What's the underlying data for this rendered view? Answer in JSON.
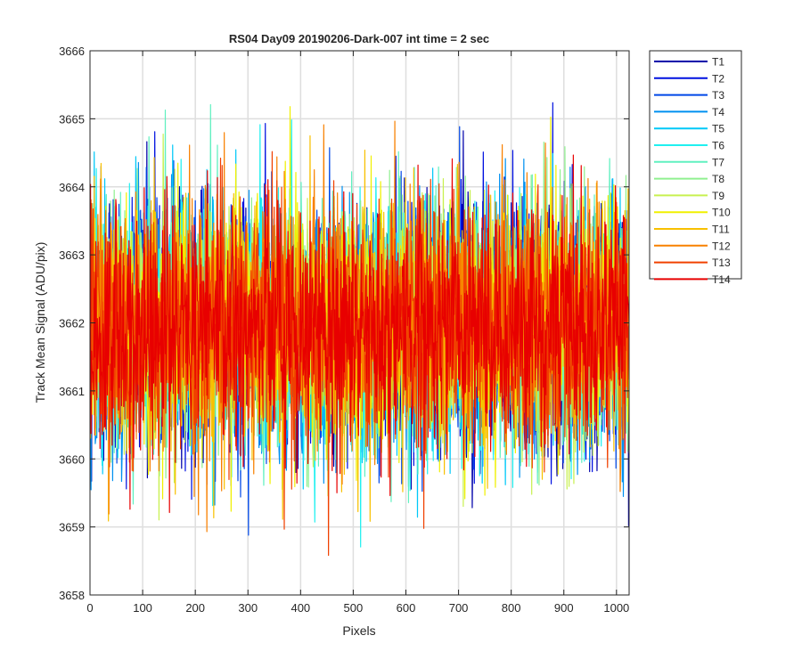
{
  "chart_data": {
    "type": "line",
    "title": "RS04 Day09 20190206-Dark-007 int time = 2 sec",
    "xlabel": "Pixels",
    "ylabel": "Track Mean Signal (ADU/pix)",
    "xlim": [
      0,
      1024
    ],
    "ylim": [
      3658,
      3666
    ],
    "xticks": [
      0,
      100,
      200,
      300,
      400,
      500,
      600,
      700,
      800,
      900,
      1000
    ],
    "yticks": [
      3658,
      3659,
      3660,
      3661,
      3662,
      3663,
      3664,
      3665,
      3666
    ],
    "grid": true,
    "legend_position": "outside-top-right",
    "x_range": [
      1,
      1024
    ],
    "noise": {
      "mean": 3661.95,
      "std_dev": 0.9
    },
    "series": [
      {
        "name": "T1",
        "color": "#0000aa"
      },
      {
        "name": "T2",
        "color": "#0010e0"
      },
      {
        "name": "T3",
        "color": "#0048e8"
      },
      {
        "name": "T4",
        "color": "#0090f0"
      },
      {
        "name": "T5",
        "color": "#00c8f8"
      },
      {
        "name": "T6",
        "color": "#20f0f0"
      },
      {
        "name": "T7",
        "color": "#60f0c0"
      },
      {
        "name": "T8",
        "color": "#90f090"
      },
      {
        "name": "T9",
        "color": "#c8f050"
      },
      {
        "name": "T10",
        "color": "#f0f000"
      },
      {
        "name": "T11",
        "color": "#f8c000"
      },
      {
        "name": "T12",
        "color": "#f88000"
      },
      {
        "name": "T13",
        "color": "#f04000"
      },
      {
        "name": "T14",
        "color": "#e80000"
      }
    ]
  }
}
